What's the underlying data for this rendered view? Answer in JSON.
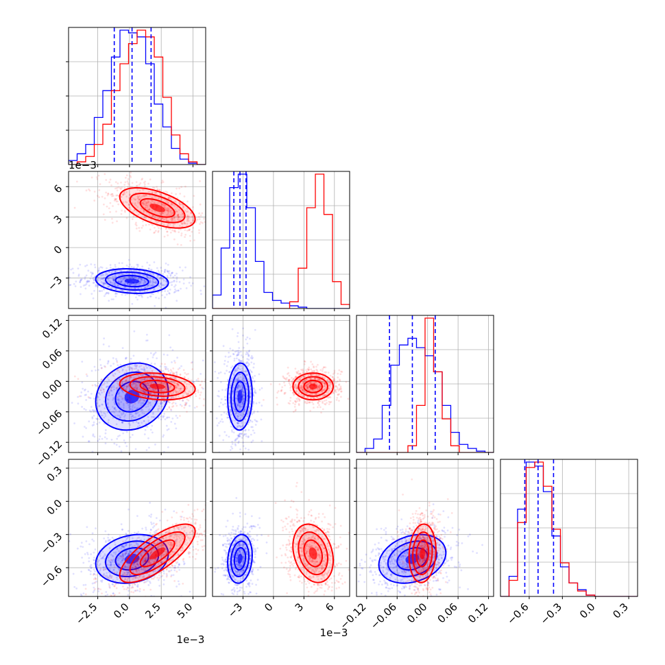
{
  "figure": {
    "background": "#ffffff",
    "colors": {
      "blue": "#0000ff",
      "red": "#ff0000",
      "grid": "#b0b0b0"
    },
    "offset_labels": {
      "row1_y": "1e−3",
      "col0_x": "1e−3",
      "col1_x": "1e−3"
    }
  },
  "chart_data": {
    "type": "corner",
    "parameters": 4,
    "axes": {
      "p1": {
        "range": [
          -4.8,
          6.0
        ],
        "ticks": [
          -2.5,
          0.0,
          2.5,
          5.0
        ],
        "tick_labels": [
          "−2.5",
          "0.0",
          "2.5",
          "5.0"
        ],
        "offset": "1e−3"
      },
      "p2": {
        "range": [
          -6.0,
          7.5
        ],
        "ticks": [
          -3,
          0,
          3,
          6
        ],
        "tick_labels": [
          "−3",
          "0",
          "3",
          "6"
        ],
        "offset": "1e−3"
      },
      "p3": {
        "range": [
          -0.14,
          0.13
        ],
        "ticks": [
          -0.12,
          -0.06,
          0.0,
          0.06,
          0.12
        ],
        "tick_labels": [
          "−0.12",
          "−0.06",
          "0.00",
          "0.06",
          "0.12"
        ]
      },
      "p4": {
        "range": [
          -0.86,
          0.38
        ],
        "ticks": [
          -0.6,
          -0.3,
          0.0,
          0.3
        ],
        "tick_labels": [
          "−0.6",
          "−0.3",
          "0.0",
          "0.3"
        ]
      }
    },
    "series": [
      {
        "color": "#0000ff",
        "means": [
          0.2,
          -3.3,
          -0.03,
          -0.52
        ],
        "quantiles": {
          "p1": [
            -1.2,
            0.2,
            1.7
          ],
          "p2": [
            -3.9,
            -3.3,
            -2.7
          ],
          "p3": [
            -0.075,
            -0.03,
            0.015
          ],
          "p4": [
            -0.64,
            -0.52,
            -0.38
          ]
        },
        "hist": {
          "p1": [
            0.03,
            0.08,
            0.15,
            0.35,
            0.55,
            0.8,
            1.0,
            0.98,
            0.95,
            0.75,
            0.45,
            0.28,
            0.12,
            0.04,
            0.01,
            0.0
          ],
          "p2": [
            0.1,
            0.45,
            0.9,
            1.0,
            0.75,
            0.35,
            0.12,
            0.06,
            0.04,
            0.02,
            0.01,
            0.0,
            0.0,
            0.0,
            0.0,
            0.0
          ],
          "p3": [
            0.0,
            0.03,
            0.1,
            0.35,
            0.65,
            0.8,
            0.85,
            0.78,
            0.72,
            0.6,
            0.35,
            0.15,
            0.06,
            0.03,
            0.01,
            0.0
          ],
          "p4": [
            0.0,
            0.15,
            0.65,
            1.0,
            0.97,
            0.78,
            0.45,
            0.22,
            0.1,
            0.05,
            0.01,
            0.0,
            0.0,
            0.0,
            0.0,
            0.0
          ]
        }
      },
      {
        "color": "#ff0000",
        "means": [
          2.2,
          3.9,
          -0.01,
          -0.47
        ],
        "hist": {
          "p1": [
            0.0,
            0.02,
            0.06,
            0.15,
            0.3,
            0.55,
            0.75,
            0.9,
            1.0,
            0.95,
            0.8,
            0.5,
            0.22,
            0.08,
            0.02,
            0.0
          ],
          "p2": [
            0.0,
            0.0,
            0.0,
            0.0,
            0.0,
            0.0,
            0.0,
            0.0,
            0.0,
            0.05,
            0.3,
            0.75,
            1.0,
            0.7,
            0.2,
            0.03
          ],
          "p3": [
            0.0,
            0.0,
            0.0,
            0.0,
            0.0,
            0.0,
            0.05,
            0.35,
            1.0,
            0.6,
            0.25,
            0.05,
            0.0,
            0.0,
            0.0,
            0.0
          ],
          "p4": [
            0.0,
            0.12,
            0.55,
            0.96,
            1.0,
            0.82,
            0.5,
            0.25,
            0.1,
            0.04,
            0.01,
            0.0,
            0.0,
            0.0,
            0.0,
            0.0
          ]
        }
      }
    ]
  }
}
